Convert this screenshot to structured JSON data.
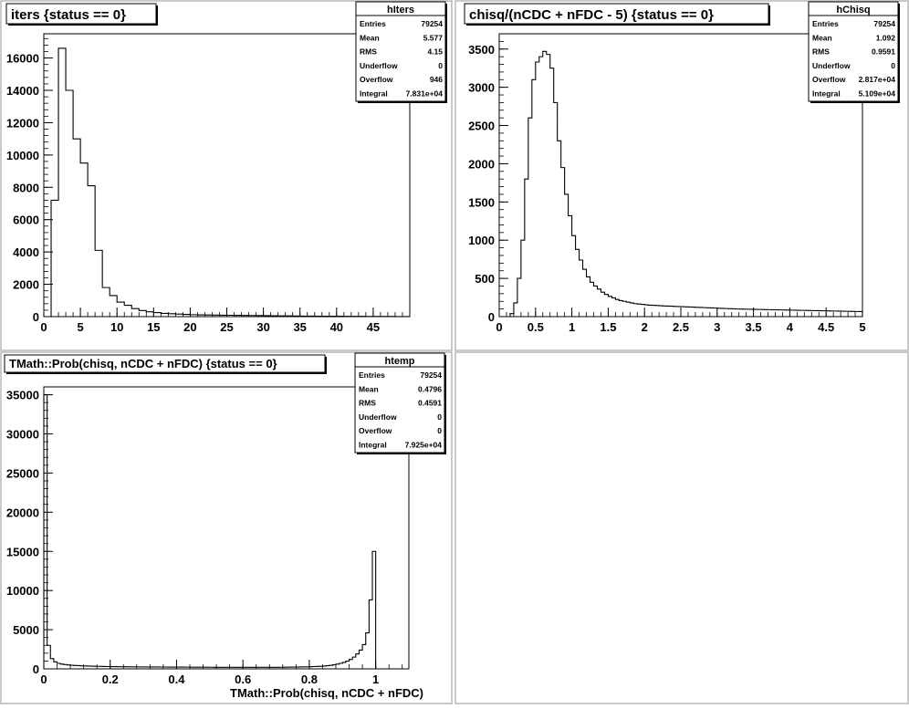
{
  "chart_data": [
    {
      "type": "histogram",
      "title": "iters  {status == 0}",
      "xlabel": "",
      "xlim": [
        0,
        50
      ],
      "ylim": [
        0,
        17500
      ],
      "x_ticks": [
        "0",
        "5",
        "10",
        "15",
        "20",
        "25",
        "30",
        "35",
        "40",
        "45"
      ],
      "x_tick_values": [
        0,
        5,
        10,
        15,
        20,
        25,
        30,
        35,
        40,
        45
      ],
      "y_ticks": [
        "0",
        "2000",
        "4000",
        "6000",
        "8000",
        "10000",
        "12000",
        "14000",
        "16000"
      ],
      "y_tick_values": [
        0,
        2000,
        4000,
        6000,
        8000,
        10000,
        12000,
        14000,
        16000
      ],
      "bins": {
        "start": 0,
        "width": 1,
        "values": [
          0,
          7200,
          16600,
          14000,
          11000,
          9500,
          8100,
          4100,
          1800,
          1300,
          900,
          700,
          500,
          380,
          300,
          250,
          200,
          180,
          160,
          140,
          120,
          110,
          100,
          95,
          90,
          85,
          80,
          75,
          70,
          65,
          60,
          55,
          50,
          45,
          40,
          35,
          30,
          28,
          26,
          24,
          22,
          20,
          18,
          16,
          14,
          12,
          10,
          8,
          6,
          4
        ]
      },
      "stats": {
        "name": "hIters",
        "rows": [
          {
            "label": "Entries",
            "value": "79254"
          },
          {
            "label": "Mean",
            "value": "5.577"
          },
          {
            "label": "RMS",
            "value": "4.15"
          },
          {
            "label": "Underflow",
            "value": "0"
          },
          {
            "label": "Overflow",
            "value": "946"
          },
          {
            "label": "Integral",
            "value": "7.831e+04"
          }
        ]
      }
    },
    {
      "type": "histogram",
      "title": "chisq/(nCDC + nFDC - 5)  {status == 0}",
      "xlabel": "",
      "xlim": [
        0,
        5
      ],
      "ylim": [
        0,
        3700
      ],
      "x_ticks": [
        "0",
        "0.5",
        "1",
        "1.5",
        "2",
        "2.5",
        "3",
        "3.5",
        "4",
        "4.5",
        "5"
      ],
      "x_tick_values": [
        0,
        0.5,
        1,
        1.5,
        2,
        2.5,
        3,
        3.5,
        4,
        4.5,
        5
      ],
      "y_ticks": [
        "0",
        "500",
        "1000",
        "1500",
        "2000",
        "2500",
        "3000",
        "3500"
      ],
      "y_tick_values": [
        0,
        500,
        1000,
        1500,
        2000,
        2500,
        3000,
        3500
      ],
      "bins": {
        "start": 0,
        "width": 0.05,
        "values": [
          0,
          0,
          0,
          40,
          180,
          500,
          1000,
          1800,
          2600,
          3100,
          3330,
          3400,
          3470,
          3430,
          3250,
          2800,
          2300,
          1950,
          1600,
          1320,
          1060,
          880,
          740,
          620,
          520,
          450,
          400,
          360,
          320,
          290,
          265,
          245,
          225,
          210,
          200,
          190,
          180,
          170,
          165,
          160,
          155,
          150,
          148,
          145,
          142,
          140,
          138,
          136,
          134,
          132,
          130,
          128,
          126,
          124,
          122,
          120,
          118,
          116,
          114,
          112,
          110,
          108,
          106,
          104,
          102,
          100,
          99,
          98,
          97,
          96,
          95,
          94,
          93,
          92,
          91,
          90,
          89,
          88,
          87,
          86,
          85,
          84,
          83,
          82,
          81,
          80,
          79,
          78,
          77,
          76,
          75,
          74,
          73,
          72,
          71,
          70,
          69,
          68,
          67,
          66
        ]
      },
      "stats": {
        "name": "hChisq",
        "rows": [
          {
            "label": "Entries",
            "value": "79254"
          },
          {
            "label": "Mean",
            "value": "1.092"
          },
          {
            "label": "RMS",
            "value": "0.9591"
          },
          {
            "label": "Underflow",
            "value": "0"
          },
          {
            "label": "Overflow",
            "value": "2.817e+04"
          },
          {
            "label": "Integral",
            "value": "5.109e+04"
          }
        ]
      }
    },
    {
      "type": "histogram",
      "title": "TMath::Prob(chisq, nCDC + nFDC) {status == 0}",
      "xlabel": "TMath::Prob(chisq, nCDC + nFDC)",
      "xlim": [
        0,
        1.1
      ],
      "ylim": [
        0,
        36000
      ],
      "x_ticks": [
        "0",
        "0.2",
        "0.4",
        "0.6",
        "0.8",
        "1"
      ],
      "x_tick_values": [
        0,
        0.2,
        0.4,
        0.6,
        0.8,
        1
      ],
      "y_ticks": [
        "0",
        "5000",
        "10000",
        "15000",
        "20000",
        "25000",
        "30000",
        "35000"
      ],
      "y_tick_values": [
        0,
        5000,
        10000,
        15000,
        20000,
        25000,
        30000,
        35000
      ],
      "bins": {
        "start": 0,
        "width": 0.01,
        "values": [
          35000,
          3000,
          1300,
          900,
          700,
          600,
          550,
          500,
          460,
          430,
          410,
          390,
          370,
          355,
          340,
          330,
          320,
          310,
          300,
          290,
          285,
          280,
          275,
          270,
          265,
          260,
          255,
          250,
          248,
          246,
          244,
          242,
          240,
          238,
          236,
          234,
          232,
          230,
          228,
          226,
          224,
          222,
          220,
          218,
          216,
          214,
          212,
          210,
          208,
          206,
          204,
          202,
          200,
          200,
          200,
          200,
          200,
          200,
          200,
          200,
          200,
          200,
          200,
          200,
          200,
          200,
          200,
          200,
          200,
          200,
          200,
          205,
          210,
          215,
          220,
          225,
          230,
          240,
          250,
          260,
          270,
          290,
          310,
          330,
          360,
          400,
          450,
          520,
          600,
          700,
          820,
          980,
          1200,
          1500,
          1900,
          2400,
          3100,
          4600,
          8800,
          15000,
          0,
          0,
          0,
          0,
          0,
          0,
          0,
          0,
          0,
          0
        ]
      },
      "stats": {
        "name": "htemp",
        "rows": [
          {
            "label": "Entries",
            "value": "79254"
          },
          {
            "label": "Mean",
            "value": "0.4796"
          },
          {
            "label": "RMS",
            "value": "0.4591"
          },
          {
            "label": "Underflow",
            "value": "0"
          },
          {
            "label": "Overflow",
            "value": "0"
          },
          {
            "label": "Integral",
            "value": "7.925e+04"
          }
        ]
      }
    }
  ]
}
